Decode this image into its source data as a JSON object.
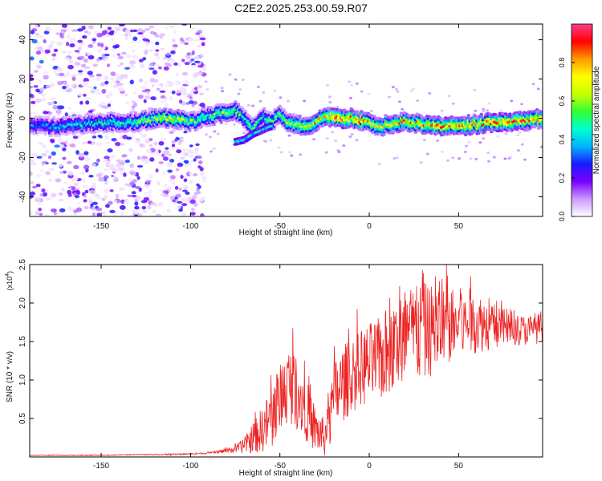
{
  "title": "C2E2.2025.253.00.59.R07",
  "chart_data": [
    {
      "type": "heatmap",
      "xlabel": "Height of straight line (km)",
      "ylabel": "Frequency (Hz)",
      "xlim": [
        -190,
        97
      ],
      "ylim": [
        -50,
        48
      ],
      "x_ticks": [
        -150,
        -100,
        -50,
        0,
        50
      ],
      "y_ticks": [
        40,
        20,
        0,
        -20,
        -40
      ],
      "colorbar": {
        "label": "Normalized spectral amplitude",
        "range": [
          0,
          1
        ],
        "ticks": [
          0.0,
          0.2,
          0.4,
          0.6,
          0.8
        ],
        "tick_labels": [
          "0.0",
          "0.2",
          "0.4",
          "0.6",
          "0.8"
        ],
        "colors": [
          "#ffffff",
          "#cc99ff",
          "#7a00ff",
          "#1a1aff",
          "#00b4ff",
          "#00ffd0",
          "#33ff33",
          "#c8ff00",
          "#ffff00",
          "#ff9900",
          "#ff0000",
          "#ff3c8c"
        ]
      },
      "ridge": {
        "x": [
          -190,
          -175,
          -160,
          -145,
          -130,
          -120,
          -110,
          -100,
          -90,
          -80,
          -75,
          -70,
          -65,
          -60,
          -55,
          -50,
          -45,
          -40,
          -35,
          -30,
          -25,
          -20,
          -10,
          0,
          5,
          10,
          20,
          30,
          40,
          50,
          60,
          70,
          80,
          90,
          97
        ],
        "y": [
          -4,
          -4,
          -3,
          -2,
          -2,
          0,
          0,
          -2,
          1,
          3,
          4,
          0,
          -5,
          1,
          -2,
          2,
          -3,
          -3,
          -4,
          -2,
          1,
          0,
          0,
          -2,
          -5,
          -3,
          -2,
          -3,
          -4,
          -4,
          -3,
          -2,
          -2,
          -1,
          0
        ],
        "amplitude": [
          0.35,
          0.4,
          0.45,
          0.5,
          0.55,
          0.65,
          0.7,
          0.6,
          0.55,
          0.65,
          0.6,
          0.5,
          0.6,
          0.5,
          0.55,
          0.55,
          0.65,
          0.7,
          0.75,
          0.8,
          0.75,
          0.95,
          0.9,
          0.8,
          0.7,
          0.75,
          0.8,
          0.8,
          0.85,
          0.85,
          0.8,
          0.9,
          0.9,
          0.85,
          0.9
        ]
      },
      "side_branch": {
        "x": [
          -75,
          -70,
          -65,
          -60,
          -55
        ],
        "y": [
          -12,
          -11,
          -8,
          -6,
          -4
        ]
      }
    },
    {
      "type": "line",
      "xlabel": "Height of straight line (km)",
      "ylabel": "SNR (10 * v/v)",
      "y_multiplier": "(x10^4)",
      "xlim": [
        -190,
        97
      ],
      "ylim": [
        0,
        2.5
      ],
      "x_ticks": [
        -150,
        -100,
        -50,
        0,
        50
      ],
      "y_ticks": [
        0.5,
        1.0,
        1.5,
        2.0,
        2.5
      ],
      "y_tick_labels": [
        "0.5",
        "1.0",
        "1.5",
        "2.0",
        "2.5"
      ],
      "color": "#ee2222",
      "series": [
        {
          "x": [
            -190,
            -170,
            -150,
            -130,
            -110,
            -100,
            -90,
            -80,
            -75,
            -70,
            -65,
            -60,
            -55,
            -50,
            -45,
            -40,
            -35,
            -30,
            -25,
            -22,
            -20,
            -15,
            -10,
            -5,
            0,
            5,
            10,
            15,
            20,
            25,
            30,
            35,
            40,
            45,
            50,
            55,
            60,
            65,
            70,
            75,
            80,
            85,
            90,
            97
          ],
          "y": [
            0.02,
            0.02,
            0.02,
            0.03,
            0.03,
            0.04,
            0.05,
            0.08,
            0.1,
            0.15,
            0.25,
            0.35,
            0.5,
            0.75,
            0.95,
            0.85,
            0.6,
            0.35,
            0.25,
            0.45,
            0.75,
            0.95,
            1.05,
            1.15,
            1.2,
            1.25,
            1.35,
            1.45,
            1.55,
            1.6,
            1.62,
            1.65,
            1.68,
            1.7,
            1.72,
            1.72,
            1.75,
            1.72,
            1.7,
            1.68,
            1.66,
            1.65,
            1.65,
            1.68
          ],
          "noise": [
            0.005,
            0.005,
            0.005,
            0.005,
            0.01,
            0.01,
            0.01,
            0.03,
            0.05,
            0.1,
            0.2,
            0.3,
            0.4,
            0.45,
            0.5,
            0.5,
            0.4,
            0.3,
            0.25,
            0.35,
            0.5,
            0.5,
            0.5,
            0.5,
            0.55,
            0.55,
            0.6,
            0.6,
            0.65,
            0.65,
            0.65,
            0.6,
            0.55,
            0.5,
            0.45,
            0.4,
            0.4,
            0.35,
            0.3,
            0.25,
            0.22,
            0.2,
            0.2,
            0.2
          ]
        }
      ]
    }
  ]
}
